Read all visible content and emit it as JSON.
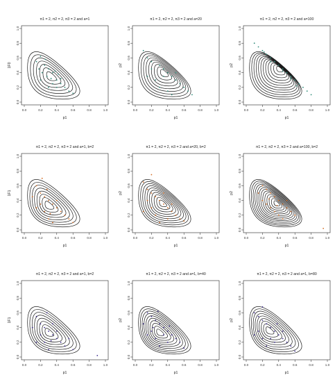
{
  "chart_data": [
    {
      "type": "contour",
      "title": "π1 = 2, π2 = 2, π3 = 2 and a=1",
      "xlabel": "p1",
      "ylabel": "1F0",
      "xlim": [
        0,
        1
      ],
      "ylim": [
        0,
        1
      ],
      "x_ticks": [
        "0.0",
        "0.2",
        "0.4",
        "0.6",
        "0.8",
        "1.0"
      ],
      "y_ticks": [
        "0.0",
        "0.2",
        "0.4",
        "0.6",
        "0.8",
        "1.0"
      ],
      "mode": [
        0.33,
        0.35
      ],
      "levels": 7,
      "point_color": "#2e8b7a",
      "points": [
        [
          0.15,
          0.55
        ],
        [
          0.2,
          0.62
        ],
        [
          0.25,
          0.5
        ],
        [
          0.3,
          0.45
        ],
        [
          0.35,
          0.4
        ],
        [
          0.4,
          0.3
        ],
        [
          0.42,
          0.38
        ],
        [
          0.38,
          0.42
        ],
        [
          0.28,
          0.35
        ],
        [
          0.22,
          0.4
        ],
        [
          0.45,
          0.25
        ],
        [
          0.5,
          0.2
        ],
        [
          0.55,
          0.15
        ],
        [
          0.3,
          0.2
        ],
        [
          0.35,
          0.25
        ],
        [
          0.45,
          0.32
        ],
        [
          0.2,
          0.3
        ],
        [
          0.6,
          0.12
        ],
        [
          0.18,
          0.45
        ],
        [
          0.26,
          0.58
        ],
        [
          0.33,
          0.32
        ],
        [
          0.4,
          0.2
        ]
      ]
    },
    {
      "type": "contour",
      "title": "π1 = 2, π2 = 2, π3 = 2 and a=20",
      "xlabel": "p1",
      "ylabel": "p2",
      "xlim": [
        0,
        1
      ],
      "ylim": [
        0,
        1
      ],
      "x_ticks": [
        "0.0",
        "0.2",
        "0.4",
        "0.6",
        "0.8",
        "1.0"
      ],
      "y_ticks": [
        "0.0",
        "0.2",
        "0.4",
        "0.6",
        "0.8",
        "1.0"
      ],
      "mode": [
        0.36,
        0.4
      ],
      "levels": 9,
      "point_color": "#2e8b7a",
      "points": [
        [
          0.1,
          0.7
        ],
        [
          0.15,
          0.6
        ],
        [
          0.2,
          0.55
        ],
        [
          0.3,
          0.5
        ],
        [
          0.35,
          0.45
        ],
        [
          0.4,
          0.4
        ],
        [
          0.45,
          0.35
        ],
        [
          0.5,
          0.3
        ],
        [
          0.55,
          0.25
        ],
        [
          0.6,
          0.2
        ],
        [
          0.25,
          0.3
        ],
        [
          0.3,
          0.2
        ],
        [
          0.4,
          0.15
        ],
        [
          0.45,
          0.1
        ],
        [
          0.35,
          0.35
        ],
        [
          0.2,
          0.45
        ],
        [
          0.15,
          0.35
        ],
        [
          0.65,
          0.15
        ],
        [
          0.7,
          0.1
        ],
        [
          0.5,
          0.4
        ]
      ]
    },
    {
      "type": "contour",
      "title": "π1 = 2, π2 = 2, π3 = 2 and a=100",
      "xlabel": "p1",
      "ylabel": "p2",
      "xlim": [
        0,
        1
      ],
      "ylim": [
        0,
        1
      ],
      "x_ticks": [
        "0.0",
        "0.2",
        "0.4",
        "0.6",
        "0.8",
        "1.0"
      ],
      "y_ticks": [
        "0.0",
        "0.2",
        "0.4",
        "0.6",
        "0.8",
        "1.0"
      ],
      "mode": [
        0.42,
        0.46
      ],
      "levels": 12,
      "point_color": "#2e8b7a",
      "points": [
        [
          0.1,
          0.8
        ],
        [
          0.15,
          0.75
        ],
        [
          0.2,
          0.7
        ],
        [
          0.25,
          0.65
        ],
        [
          0.3,
          0.6
        ],
        [
          0.35,
          0.55
        ],
        [
          0.4,
          0.5
        ],
        [
          0.45,
          0.45
        ],
        [
          0.5,
          0.4
        ],
        [
          0.55,
          0.35
        ],
        [
          0.6,
          0.3
        ],
        [
          0.65,
          0.25
        ],
        [
          0.7,
          0.2
        ],
        [
          0.75,
          0.15
        ],
        [
          0.8,
          0.1
        ],
        [
          0.3,
          0.55
        ],
        [
          0.45,
          0.42
        ],
        [
          0.55,
          0.32
        ],
        [
          0.22,
          0.68
        ],
        [
          0.62,
          0.22
        ]
      ]
    },
    {
      "type": "contour",
      "title": "π1 = 2, π2 = 2, π3 = 2 and a=1, b=2",
      "xlabel": "p1",
      "ylabel": "1F1",
      "xlim": [
        0,
        1
      ],
      "ylim": [
        0,
        1
      ],
      "x_ticks": [
        "0.0",
        "0.2",
        "0.4",
        "0.6",
        "0.8",
        "1.0"
      ],
      "y_ticks": [
        "0.0",
        "0.2",
        "0.4",
        "0.6",
        "0.8",
        "1.0"
      ],
      "mode": [
        0.3,
        0.33
      ],
      "levels": 8,
      "point_color": "#d2691e",
      "points": [
        [
          0.15,
          0.6
        ],
        [
          0.2,
          0.5
        ],
        [
          0.25,
          0.45
        ],
        [
          0.3,
          0.4
        ],
        [
          0.35,
          0.35
        ],
        [
          0.4,
          0.3
        ],
        [
          0.45,
          0.25
        ],
        [
          0.5,
          0.2
        ],
        [
          0.55,
          0.15
        ],
        [
          0.2,
          0.35
        ],
        [
          0.25,
          0.25
        ],
        [
          0.3,
          0.15
        ],
        [
          0.35,
          0.1
        ],
        [
          0.1,
          0.45
        ],
        [
          0.15,
          0.3
        ],
        [
          0.4,
          0.4
        ],
        [
          0.28,
          0.55
        ],
        [
          0.6,
          0.1
        ],
        [
          0.22,
          0.7
        ],
        [
          0.32,
          0.22
        ]
      ]
    },
    {
      "type": "contour",
      "title": "π1 = 2, π2 = 2, π3 = 2 and a=20, b=2",
      "xlabel": "p1",
      "ylabel": "p2",
      "xlim": [
        0,
        1
      ],
      "ylim": [
        0,
        1
      ],
      "x_ticks": [
        "0.0",
        "0.2",
        "0.4",
        "0.6",
        "0.8",
        "1.0"
      ],
      "y_ticks": [
        "0.0",
        "0.2",
        "0.4",
        "0.6",
        "0.8",
        "1.0"
      ],
      "mode": [
        0.34,
        0.36
      ],
      "levels": 10,
      "point_color": "#d2691e",
      "points": [
        [
          0.1,
          0.65
        ],
        [
          0.15,
          0.55
        ],
        [
          0.2,
          0.5
        ],
        [
          0.25,
          0.45
        ],
        [
          0.3,
          0.4
        ],
        [
          0.35,
          0.35
        ],
        [
          0.4,
          0.3
        ],
        [
          0.45,
          0.25
        ],
        [
          0.5,
          0.2
        ],
        [
          0.55,
          0.15
        ],
        [
          0.15,
          0.4
        ],
        [
          0.2,
          0.3
        ],
        [
          0.25,
          0.2
        ],
        [
          0.3,
          0.1
        ],
        [
          0.4,
          0.15
        ],
        [
          0.45,
          0.35
        ],
        [
          0.1,
          0.25
        ],
        [
          0.6,
          0.12
        ],
        [
          0.2,
          0.75
        ],
        [
          0.35,
          0.5
        ]
      ]
    },
    {
      "type": "contour",
      "title": "π1 = 2, π2 = 2, π3 = 2 and a=100, b=2",
      "xlabel": "p1",
      "ylabel": "p2",
      "xlim": [
        0,
        1
      ],
      "ylim": [
        0,
        1
      ],
      "x_ticks": [
        "0.0",
        "0.2",
        "0.4",
        "0.6",
        "0.8",
        "1.0"
      ],
      "y_ticks": [
        "0.0",
        "0.2",
        "0.4",
        "0.6",
        "0.8",
        "1.0"
      ],
      "mode": [
        0.38,
        0.36
      ],
      "levels": 13,
      "point_color": "#d2691e",
      "points": [
        [
          0.2,
          0.6
        ],
        [
          0.25,
          0.55
        ],
        [
          0.3,
          0.5
        ],
        [
          0.35,
          0.45
        ],
        [
          0.4,
          0.4
        ],
        [
          0.45,
          0.35
        ],
        [
          0.5,
          0.3
        ],
        [
          0.55,
          0.25
        ],
        [
          0.3,
          0.3
        ],
        [
          0.35,
          0.25
        ],
        [
          0.4,
          0.2
        ],
        [
          0.25,
          0.35
        ],
        [
          0.2,
          0.4
        ],
        [
          0.6,
          0.2
        ],
        [
          0.45,
          0.15
        ],
        [
          0.95,
          0.02
        ],
        [
          0.15,
          0.5
        ],
        [
          0.5,
          0.4
        ],
        [
          0.38,
          0.33
        ],
        [
          0.28,
          0.42
        ]
      ]
    },
    {
      "type": "contour",
      "title": "π1 = 2, π2 = 2, π3 = 2 and a=1, b=2",
      "xlabel": "p1",
      "ylabel": "1F1",
      "xlim": [
        0,
        1
      ],
      "ylim": [
        0,
        1
      ],
      "x_ticks": [
        "0.0",
        "0.2",
        "0.4",
        "0.6",
        "0.8",
        "1.0"
      ],
      "y_ticks": [
        "0.0",
        "0.2",
        "0.4",
        "0.6",
        "0.8",
        "1.0"
      ],
      "mode": [
        0.3,
        0.33
      ],
      "levels": 8,
      "point_color": "#3b2a8c",
      "points": [
        [
          0.15,
          0.55
        ],
        [
          0.2,
          0.45
        ],
        [
          0.25,
          0.4
        ],
        [
          0.3,
          0.35
        ],
        [
          0.35,
          0.3
        ],
        [
          0.4,
          0.25
        ],
        [
          0.45,
          0.2
        ],
        [
          0.5,
          0.15
        ],
        [
          0.2,
          0.3
        ],
        [
          0.25,
          0.2
        ],
        [
          0.3,
          0.1
        ],
        [
          0.1,
          0.4
        ],
        [
          0.35,
          0.45
        ],
        [
          0.4,
          0.35
        ],
        [
          0.55,
          0.25
        ],
        [
          0.6,
          0.1
        ],
        [
          0.15,
          0.2
        ],
        [
          0.28,
          0.6
        ],
        [
          0.9,
          0.02
        ],
        [
          0.33,
          0.22
        ]
      ]
    },
    {
      "type": "contour",
      "title": "π1 = 2, π2 = 2, π3 = 2 and a=1, b=40",
      "xlabel": "p1",
      "ylabel": "p2",
      "xlim": [
        0,
        1
      ],
      "ylim": [
        0,
        1
      ],
      "x_ticks": [
        "0.0",
        "0.2",
        "0.4",
        "0.6",
        "0.8",
        "1.0"
      ],
      "y_ticks": [
        "0.0",
        "0.2",
        "0.4",
        "0.6",
        "0.8",
        "1.0"
      ],
      "mode": [
        0.3,
        0.33
      ],
      "levels": 10,
      "point_color": "#3b2a8c",
      "points": [
        [
          0.15,
          0.6
        ],
        [
          0.2,
          0.55
        ],
        [
          0.25,
          0.5
        ],
        [
          0.3,
          0.45
        ],
        [
          0.35,
          0.4
        ],
        [
          0.4,
          0.35
        ],
        [
          0.45,
          0.3
        ],
        [
          0.5,
          0.25
        ],
        [
          0.2,
          0.35
        ],
        [
          0.25,
          0.25
        ],
        [
          0.3,
          0.15
        ],
        [
          0.35,
          0.3
        ],
        [
          0.4,
          0.2
        ],
        [
          0.1,
          0.45
        ],
        [
          0.15,
          0.3
        ],
        [
          0.55,
          0.2
        ],
        [
          0.6,
          0.12
        ],
        [
          0.28,
          0.62
        ],
        [
          0.22,
          0.4
        ],
        [
          0.42,
          0.42
        ]
      ]
    },
    {
      "type": "contour",
      "title": "π1 = 2, π2 = 2, π3 = 2 and a=1, b=80",
      "xlabel": "p1",
      "ylabel": "p2",
      "xlim": [
        0,
        1
      ],
      "ylim": [
        0,
        1
      ],
      "x_ticks": [
        "0.0",
        "0.2",
        "0.4",
        "0.6",
        "0.8",
        "1.0"
      ],
      "y_ticks": [
        "0.0",
        "0.2",
        "0.4",
        "0.6",
        "0.8",
        "1.0"
      ],
      "mode": [
        0.28,
        0.36
      ],
      "levels": 9,
      "point_color": "#3b2a8c",
      "points": [
        [
          0.1,
          0.6
        ],
        [
          0.15,
          0.55
        ],
        [
          0.2,
          0.5
        ],
        [
          0.25,
          0.45
        ],
        [
          0.3,
          0.4
        ],
        [
          0.35,
          0.35
        ],
        [
          0.4,
          0.3
        ],
        [
          0.45,
          0.25
        ],
        [
          0.5,
          0.2
        ],
        [
          0.15,
          0.35
        ],
        [
          0.2,
          0.25
        ],
        [
          0.25,
          0.15
        ],
        [
          0.3,
          0.25
        ],
        [
          0.35,
          0.2
        ],
        [
          0.45,
          0.35
        ],
        [
          0.55,
          0.15
        ],
        [
          0.1,
          0.3
        ],
        [
          0.2,
          0.68
        ],
        [
          0.6,
          0.08
        ],
        [
          0.38,
          0.45
        ]
      ]
    }
  ]
}
